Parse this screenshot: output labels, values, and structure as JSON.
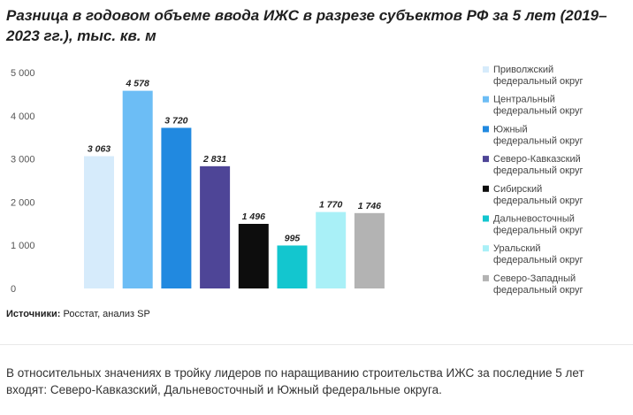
{
  "page": {
    "title": "Разница в годовом объеме ввода ИЖС в разрезе субъектов РФ за 5 лет (2019–2023 гг.), тыс. кв. м",
    "source_label": "Источники:",
    "source_text": " Росстат, анализ SP",
    "note": "В относительных значениях в тройку лидеров по наращиванию строительства ИЖС за последние 5 лет входят: Северо-Кавказский, Дальневосточный и Южный федеральные округа."
  },
  "chart_data": {
    "type": "bar",
    "title": "Разница в годовом объеме ввода ИЖС в разрезе субъектов РФ за 5 лет (2019–2023 гг.), тыс. кв. м",
    "categories": [
      "Приволжский федеральный округ",
      "Центральный федеральный округ",
      "Южный федеральный округ",
      "Северо-Кавказский федеральный округ",
      "Сибирский федеральный округ",
      "Дальневосточный федеральный округ",
      "Уральский федеральный округ",
      "Северо-Западный федеральный округ"
    ],
    "values": [
      3063,
      4578,
      3720,
      2831,
      1496,
      995,
      1770,
      1746
    ],
    "value_labels": [
      "3 063",
      "4 578",
      "3 720",
      "2 831",
      "1 496",
      "995",
      "1 770",
      "1 746"
    ],
    "colors": [
      "#d6ebfb",
      "#6cbdf5",
      "#2189e0",
      "#4e4597",
      "#0d0d0d",
      "#13c6cf",
      "#a9f0f7",
      "#b3b3b3"
    ],
    "legend": [
      [
        "Приволжский",
        "федеральный округ"
      ],
      [
        "Центральный",
        "федеральный округ"
      ],
      [
        "Южный",
        "федеральный округ"
      ],
      [
        "Северо-Кавказский",
        "федеральный округ"
      ],
      [
        "Сибирский",
        "федеральный округ"
      ],
      [
        "Дальневосточный",
        "федеральный округ"
      ],
      [
        "Уральский",
        "федеральный округ"
      ],
      [
        "Северо-Западный",
        "федеральный округ"
      ]
    ],
    "legend_position": "right",
    "ylim": [
      0,
      5000
    ],
    "yticks": [
      0,
      1000,
      2000,
      3000,
      4000,
      5000
    ],
    "ytick_labels": [
      "0",
      "1 000",
      "2 000",
      "3 000",
      "4 000",
      "5 000"
    ],
    "grid": false
  }
}
